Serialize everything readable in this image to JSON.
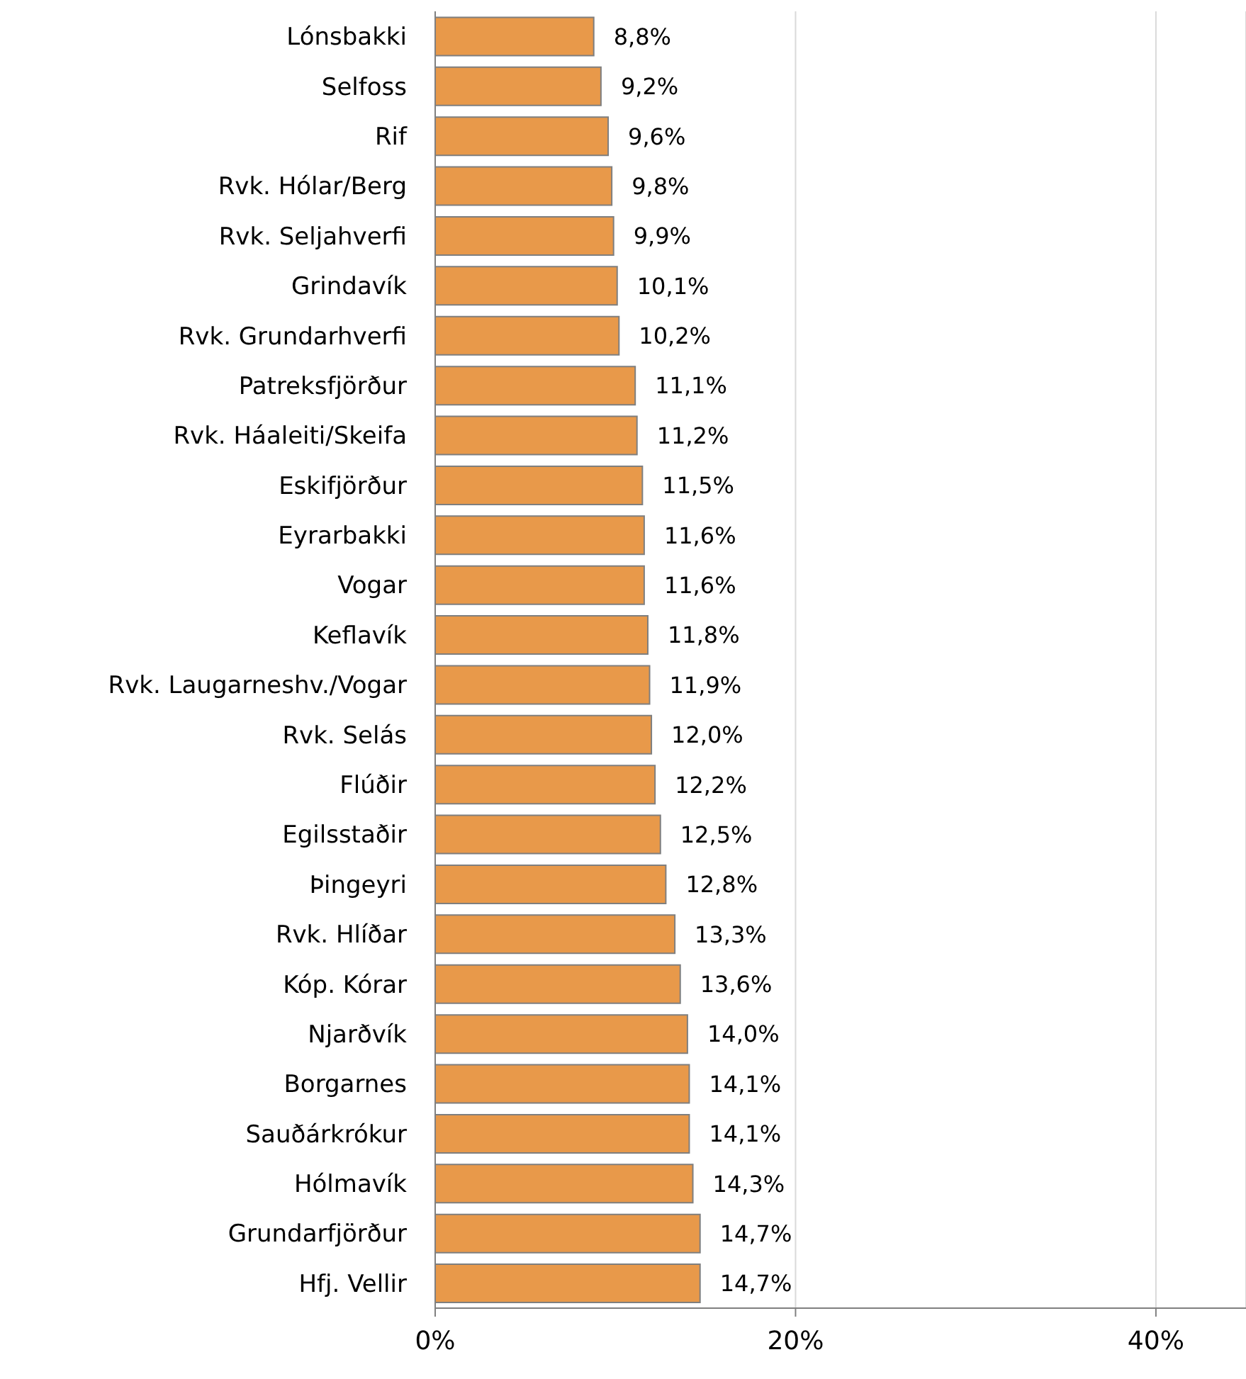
{
  "chart_data": {
    "type": "bar",
    "orientation": "horizontal",
    "categories": [
      "Lónsbakki",
      "Selfoss",
      "Rif",
      "Rvk. Hólar/Berg",
      "Rvk. Seljahverfi",
      "Grindavík",
      "Rvk. Grundarhverfi",
      "Patreksfjörður",
      "Rvk. Háaleiti/Skeifa",
      "Eskifjörður",
      "Eyrarbakki",
      "Vogar",
      "Keflavík",
      "Rvk. Laugarneshv./Vogar",
      "Rvk. Selás",
      "Flúðir",
      "Egilsstaðir",
      "Þingeyri",
      "Rvk. Hlíðar",
      "Kóp. Kórar",
      "Njarðvík",
      "Borgarnes",
      "Sauðárkrókur",
      "Hólmavík",
      "Grundarfjörður",
      "Hfj. Vellir"
    ],
    "values": [
      8.8,
      9.2,
      9.6,
      9.8,
      9.9,
      10.1,
      10.2,
      11.1,
      11.2,
      11.5,
      11.6,
      11.6,
      11.8,
      11.9,
      12.0,
      12.2,
      12.5,
      12.8,
      13.3,
      13.6,
      14.0,
      14.1,
      14.1,
      14.3,
      14.7,
      14.7
    ],
    "value_labels": [
      "8,8%",
      "9,2%",
      "9,6%",
      "9,8%",
      "9,9%",
      "10,1%",
      "10,2%",
      "11,1%",
      "11,2%",
      "11,5%",
      "11,6%",
      "11,6%",
      "11,8%",
      "11,9%",
      "12,0%",
      "12,2%",
      "12,5%",
      "12,8%",
      "13,3%",
      "13,6%",
      "14,0%",
      "14,1%",
      "14,1%",
      "14,3%",
      "14,7%",
      "14,7%"
    ],
    "color": "#e8994a",
    "xlim": [
      0,
      45
    ],
    "xticks": [
      {
        "value": 0,
        "label": "0%"
      },
      {
        "value": 20,
        "label": "20%"
      },
      {
        "value": 40,
        "label": "40%"
      }
    ],
    "grid": "x"
  }
}
